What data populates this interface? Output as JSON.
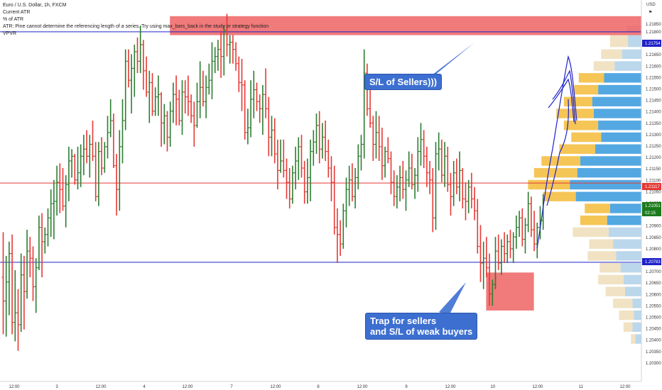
{
  "header": {
    "symbol_title": "Euro / U.S. Dollar, 1h, FXCM",
    "indicators": [
      "Current ATR",
      "% of ATR",
      "ATR: Pine cannot determine the referencing length of a series. Try using max_bars_back in the study or strategy function",
      "VPVR"
    ]
  },
  "price_axis": {
    "currency": "USD",
    "ticks": [
      "1.21850",
      "1.21800",
      "1.21700",
      "1.21650",
      "1.21600",
      "1.21550",
      "1.21500",
      "1.21450",
      "1.21400",
      "1.21350",
      "1.21300",
      "1.21250",
      "1.21200",
      "1.21150",
      "1.21100",
      "1.21050",
      "1.21000",
      "1.20950",
      "1.20900",
      "1.20850",
      "1.20800",
      "1.20750",
      "1.20700",
      "1.20650",
      "1.20600",
      "1.20550",
      "1.20500",
      "1.20450",
      "1.20400",
      "1.20350",
      "1.20300"
    ],
    "price_tags": [
      {
        "label": "1.21754",
        "color": "#1e22c8"
      },
      {
        "label": "1.21117",
        "color": "#e53935"
      },
      {
        "label": "1.21051",
        "color": "#1b7a1b"
      },
      {
        "label": "02:15",
        "color": "#1b7a1b"
      },
      {
        "label": "1.20783",
        "color": "#1e22c8"
      }
    ],
    "bell_icon": "bell-icon"
  },
  "time_axis": {
    "ticks": [
      "12:00",
      "3",
      "12:00",
      "4",
      "12:00",
      "7",
      "12:00",
      "8",
      "12:00",
      "9",
      "12:00",
      "10",
      "12:00",
      "11",
      "12:00"
    ]
  },
  "annotations": {
    "sellers_sl": "S/L of Sellers)))",
    "trap_line1": "Trap for sellers",
    "trap_line2": "and S/L of weak buyers"
  },
  "colors": {
    "bull": "#2e7d32",
    "bear": "#e53935",
    "blue_line": "#1e22c8",
    "red_line": "#e53935",
    "zone": "#ef6b6b",
    "callout": "#3d6fd1",
    "vp_blue": "#4aa3e0",
    "vp_yellow": "#f4c24d",
    "vp_blue_light": "#b7d5ea",
    "vp_yellow_light": "#efe0c0"
  },
  "chart_data": {
    "type": "candlestick",
    "symbol": "EURUSD",
    "timeframe": "1h",
    "y_range": [
      1.2026,
      1.219
    ],
    "horizontal_lines": [
      {
        "price": 1.21754,
        "color": "#1e22c8"
      },
      {
        "price": 1.21117,
        "color": "#e53935"
      },
      {
        "price": 1.20783,
        "color": "#1e22c8"
      }
    ],
    "zones": [
      {
        "price_top": 1.2182,
        "price_bottom": 1.2174,
        "bar_start": 56,
        "bar_end": 219
      },
      {
        "price_top": 1.2074,
        "price_bottom": 1.2058,
        "bar_start": 162,
        "bar_end": 178
      }
    ],
    "close_price": 1.21051,
    "ohlc": [
      [
        1.2072,
        1.2091,
        1.2048,
        1.2062
      ],
      [
        1.2062,
        1.2081,
        1.2047,
        1.207
      ],
      [
        1.207,
        1.2087,
        1.2056,
        1.2082
      ],
      [
        1.2082,
        1.209,
        1.2048,
        1.2053
      ],
      [
        1.2053,
        1.2075,
        1.2045,
        1.2057
      ],
      [
        1.2057,
        1.2067,
        1.2041,
        1.2052
      ],
      [
        1.2052,
        1.2082,
        1.2049,
        1.2073
      ],
      [
        1.2073,
        1.2081,
        1.205,
        1.2066
      ],
      [
        1.2066,
        1.2092,
        1.2063,
        1.2083
      ],
      [
        1.2083,
        1.2089,
        1.2072,
        1.208
      ],
      [
        1.208,
        1.2085,
        1.2062,
        1.2068
      ],
      [
        1.2068,
        1.208,
        1.2057,
        1.2076
      ],
      [
        1.2076,
        1.2098,
        1.2075,
        1.2093
      ],
      [
        1.2093,
        1.2099,
        1.2072,
        1.2087
      ],
      [
        1.2087,
        1.2093,
        1.2082,
        1.209
      ],
      [
        1.209,
        1.2101,
        1.2085,
        1.2097
      ],
      [
        1.2097,
        1.2109,
        1.2089,
        1.2103
      ],
      [
        1.2103,
        1.2113,
        1.2088,
        1.2104
      ],
      [
        1.2104,
        1.2119,
        1.2098,
        1.2112
      ],
      [
        1.2112,
        1.212,
        1.2099,
        1.2109
      ],
      [
        1.2109,
        1.2118,
        1.21,
        1.2102
      ],
      [
        1.2102,
        1.2115,
        1.2093,
        1.2111
      ],
      [
        1.2111,
        1.2127,
        1.2104,
        1.2121
      ],
      [
        1.2121,
        1.2126,
        1.2114,
        1.2123
      ],
      [
        1.2123,
        1.2124,
        1.2111,
        1.2113
      ],
      [
        1.2113,
        1.2127,
        1.2109,
        1.2116
      ],
      [
        1.2116,
        1.2128,
        1.211,
        1.2123
      ],
      [
        1.2123,
        1.2132,
        1.2115,
        1.2126
      ],
      [
        1.2126,
        1.2134,
        1.212,
        1.2123
      ],
      [
        1.2123,
        1.2132,
        1.2114,
        1.2128
      ],
      [
        1.2128,
        1.2138,
        1.2121,
        1.2123
      ],
      [
        1.2123,
        1.2129,
        1.2104,
        1.2106
      ],
      [
        1.2106,
        1.2129,
        1.2102,
        1.2125
      ],
      [
        1.2125,
        1.2131,
        1.2115,
        1.2118
      ],
      [
        1.2118,
        1.2129,
        1.2116,
        1.2127
      ],
      [
        1.2127,
        1.214,
        1.2122,
        1.2133
      ],
      [
        1.2133,
        1.2147,
        1.2131,
        1.2138
      ],
      [
        1.2138,
        1.2141,
        1.2118,
        1.2119
      ],
      [
        1.2119,
        1.2124,
        1.2098,
        1.2109
      ],
      [
        1.2109,
        1.2134,
        1.21,
        1.2127
      ],
      [
        1.2127,
        1.2147,
        1.212,
        1.2138
      ],
      [
        1.2138,
        1.2168,
        1.2134,
        1.2163
      ],
      [
        1.2163,
        1.2168,
        1.2152,
        1.2155
      ],
      [
        1.2155,
        1.2166,
        1.2141,
        1.216
      ],
      [
        1.216,
        1.217,
        1.2148,
        1.2167
      ],
      [
        1.2167,
        1.2173,
        1.2158,
        1.2163
      ],
      [
        1.2163,
        1.2178,
        1.2158,
        1.217
      ],
      [
        1.217,
        1.2172,
        1.2151,
        1.2159
      ],
      [
        1.2159,
        1.2165,
        1.2148,
        1.215
      ],
      [
        1.215,
        1.2159,
        1.2137,
        1.2154
      ],
      [
        1.2154,
        1.2158,
        1.214,
        1.2142
      ],
      [
        1.2142,
        1.2152,
        1.214,
        1.2148
      ],
      [
        1.2148,
        1.2157,
        1.214,
        1.2149
      ],
      [
        1.2149,
        1.215,
        1.2127,
        1.2137
      ],
      [
        1.2137,
        1.2145,
        1.2128,
        1.214
      ],
      [
        1.214,
        1.2142,
        1.2125,
        1.2131
      ],
      [
        1.2131,
        1.2146,
        1.2127,
        1.2142
      ],
      [
        1.2142,
        1.2154,
        1.2137,
        1.2149
      ],
      [
        1.2149,
        1.2157,
        1.2136,
        1.2147
      ],
      [
        1.2147,
        1.2151,
        1.2136,
        1.2138
      ],
      [
        1.2138,
        1.2155,
        1.2132,
        1.215
      ],
      [
        1.215,
        1.2155,
        1.2141,
        1.2148
      ],
      [
        1.2148,
        1.2157,
        1.214,
        1.2146
      ],
      [
        1.2146,
        1.2149,
        1.2137,
        1.214
      ],
      [
        1.214,
        1.2146,
        1.2127,
        1.2136
      ],
      [
        1.2136,
        1.2154,
        1.2135,
        1.2146
      ],
      [
        1.2146,
        1.2163,
        1.2139,
        1.2152
      ],
      [
        1.2152,
        1.2159,
        1.2144,
        1.2146
      ],
      [
        1.2146,
        1.2157,
        1.2139,
        1.2152
      ],
      [
        1.2152,
        1.2162,
        1.2149,
        1.2155
      ],
      [
        1.2155,
        1.2171,
        1.2147,
        1.2163
      ],
      [
        1.2163,
        1.2169,
        1.2158,
        1.2165
      ],
      [
        1.2165,
        1.2172,
        1.2159,
        1.2168
      ],
      [
        1.2168,
        1.2176,
        1.2156,
        1.2165
      ],
      [
        1.2165,
        1.2178,
        1.2157,
        1.2176
      ],
      [
        1.2176,
        1.2183,
        1.2165,
        1.217
      ],
      [
        1.217,
        1.2174,
        1.2162,
        1.2171
      ],
      [
        1.2171,
        1.2174,
        1.2162,
        1.2168
      ],
      [
        1.2168,
        1.2171,
        1.2159,
        1.2162
      ],
      [
        1.2162,
        1.2165,
        1.215,
        1.2154
      ],
      [
        1.2154,
        1.2164,
        1.2142,
        1.2153
      ],
      [
        1.2153,
        1.2155,
        1.213,
        1.2133
      ],
      [
        1.2133,
        1.2143,
        1.2128,
        1.2135
      ],
      [
        1.2135,
        1.2155,
        1.2131,
        1.2147
      ],
      [
        1.2147,
        1.2159,
        1.2139,
        1.2151
      ],
      [
        1.2151,
        1.2154,
        1.2142,
        1.2146
      ],
      [
        1.2146,
        1.2149,
        1.2137,
        1.2143
      ],
      [
        1.2143,
        1.2153,
        1.2132,
        1.2149
      ],
      [
        1.2149,
        1.216,
        1.2139,
        1.2143
      ],
      [
        1.2143,
        1.2148,
        1.2123,
        1.2131
      ],
      [
        1.2131,
        1.214,
        1.2123,
        1.2134
      ],
      [
        1.2134,
        1.2139,
        1.212,
        1.2124
      ],
      [
        1.2124,
        1.213,
        1.2109,
        1.2117
      ],
      [
        1.2117,
        1.213,
        1.2116,
        1.2121
      ],
      [
        1.2121,
        1.213,
        1.2114,
        1.2117
      ],
      [
        1.2117,
        1.2122,
        1.2105,
        1.2112
      ],
      [
        1.2112,
        1.2118,
        1.2101,
        1.2105
      ],
      [
        1.2105,
        1.2119,
        1.2103,
        1.2116
      ],
      [
        1.2116,
        1.2127,
        1.2109,
        1.2121
      ],
      [
        1.2121,
        1.2131,
        1.2113,
        1.2127
      ],
      [
        1.2127,
        1.2132,
        1.2114,
        1.2118
      ],
      [
        1.2118,
        1.2121,
        1.2103,
        1.2108
      ],
      [
        1.2108,
        1.2122,
        1.2103,
        1.2114
      ],
      [
        1.2114,
        1.213,
        1.2104,
        1.2125
      ],
      [
        1.2125,
        1.2134,
        1.2119,
        1.2129
      ],
      [
        1.2129,
        1.2141,
        1.2124,
        1.2136
      ],
      [
        1.2136,
        1.2142,
        1.212,
        1.2126
      ],
      [
        1.2126,
        1.2137,
        1.2122,
        1.2131
      ],
      [
        1.2131,
        1.2138,
        1.2121,
        1.2125
      ],
      [
        1.2125,
        1.213,
        1.2114,
        1.2118
      ],
      [
        1.2118,
        1.2123,
        1.2104,
        1.2112
      ],
      [
        1.2112,
        1.2119,
        1.209,
        1.2093
      ],
      [
        1.2093,
        1.2101,
        1.2078,
        1.209
      ],
      [
        1.209,
        1.2096,
        1.2081,
        1.2086
      ],
      [
        1.2086,
        1.2103,
        1.2084,
        1.21
      ],
      [
        1.21,
        1.2114,
        1.2093,
        1.2109
      ],
      [
        1.2109,
        1.2119,
        1.2102,
        1.2113
      ],
      [
        1.2113,
        1.212,
        1.2104,
        1.2106
      ],
      [
        1.2106,
        1.2118,
        1.2101,
        1.2114
      ],
      [
        1.2114,
        1.2128,
        1.2109,
        1.2123
      ],
      [
        1.2123,
        1.2132,
        1.2117,
        1.2128
      ],
      [
        1.2128,
        1.2168,
        1.2122,
        1.2158
      ],
      [
        1.2158,
        1.2162,
        1.214,
        1.2143
      ],
      [
        1.2143,
        1.2156,
        1.2135,
        1.2137
      ],
      [
        1.2137,
        1.214,
        1.2121,
        1.2128
      ],
      [
        1.2128,
        1.2142,
        1.2122,
        1.2133
      ],
      [
        1.2133,
        1.214,
        1.2121,
        1.2127
      ],
      [
        1.2127,
        1.2135,
        1.2113,
        1.2119
      ],
      [
        1.2119,
        1.2127,
        1.2114,
        1.2125
      ],
      [
        1.2125,
        1.2131,
        1.212,
        1.2122
      ],
      [
        1.2122,
        1.2125,
        1.2107,
        1.2112
      ],
      [
        1.2112,
        1.2117,
        1.2102,
        1.2106
      ],
      [
        1.2106,
        1.2115,
        1.2101,
        1.211
      ],
      [
        1.211,
        1.2119,
        1.2104,
        1.2114
      ],
      [
        1.2114,
        1.2121,
        1.2105,
        1.2109
      ],
      [
        1.2109,
        1.2117,
        1.21,
        1.2113
      ],
      [
        1.2113,
        1.2125,
        1.211,
        1.2118
      ],
      [
        1.2118,
        1.2124,
        1.2109,
        1.2111
      ],
      [
        1.2111,
        1.2118,
        1.2105,
        1.2115
      ],
      [
        1.2115,
        1.2131,
        1.2108,
        1.2125
      ],
      [
        1.2125,
        1.2137,
        1.2119,
        1.213
      ],
      [
        1.213,
        1.2134,
        1.2118,
        1.2123
      ],
      [
        1.2123,
        1.2127,
        1.211,
        1.2116
      ],
      [
        1.2116,
        1.2121,
        1.2107,
        1.2113
      ],
      [
        1.2113,
        1.2118,
        1.2091,
        1.2097
      ],
      [
        1.2097,
        1.2129,
        1.2092,
        1.2124
      ],
      [
        1.2124,
        1.2133,
        1.2117,
        1.2126
      ],
      [
        1.2126,
        1.213,
        1.2112,
        1.2115
      ],
      [
        1.2115,
        1.2129,
        1.211,
        1.2123
      ],
      [
        1.2123,
        1.2127,
        1.2108,
        1.2111
      ],
      [
        1.2111,
        1.2116,
        1.2098,
        1.2106
      ],
      [
        1.2106,
        1.2121,
        1.2102,
        1.2116
      ],
      [
        1.2116,
        1.2122,
        1.2107,
        1.211
      ],
      [
        1.211,
        1.2125,
        1.2104,
        1.2117
      ],
      [
        1.2117,
        1.2118,
        1.2101,
        1.2105
      ],
      [
        1.2105,
        1.2112,
        1.2096,
        1.2104
      ],
      [
        1.2104,
        1.2113,
        1.2099,
        1.211
      ],
      [
        1.211,
        1.2116,
        1.2101,
        1.2105
      ],
      [
        1.2105,
        1.211,
        1.2096,
        1.21
      ],
      [
        1.21,
        1.2105,
        1.2082,
        1.2085
      ],
      [
        1.2085,
        1.2094,
        1.207,
        1.2078
      ],
      [
        1.2078,
        1.2087,
        1.2067,
        1.208
      ],
      [
        1.208,
        1.2089,
        1.2072,
        1.2076
      ],
      [
        1.2076,
        1.2082,
        1.206,
        1.2065
      ],
      [
        1.2065,
        1.2071,
        1.206,
        1.2069
      ],
      [
        1.2069,
        1.2089,
        1.2067,
        1.2083
      ],
      [
        1.2083,
        1.209,
        1.2075,
        1.2078
      ],
      [
        1.2078,
        1.2088,
        1.2073,
        1.2085
      ],
      [
        1.2085,
        1.2091,
        1.2078,
        1.2082
      ],
      [
        1.2082,
        1.209,
        1.2078,
        1.2087
      ],
      [
        1.2087,
        1.2092,
        1.208,
        1.2084
      ],
      [
        1.2084,
        1.2091,
        1.2078,
        1.2089
      ],
      [
        1.2089,
        1.2098,
        1.2084,
        1.2093
      ],
      [
        1.2093,
        1.21,
        1.2089,
        1.2097
      ],
      [
        1.2097,
        1.2101,
        1.2085,
        1.2088
      ],
      [
        1.2088,
        1.2097,
        1.2082,
        1.2094
      ],
      [
        1.2094,
        1.2108,
        1.2091,
        1.2103
      ],
      [
        1.2103,
        1.2106,
        1.2089,
        1.2092
      ],
      [
        1.2092,
        1.21,
        1.2083,
        1.2086
      ],
      [
        1.2086,
        1.2095,
        1.208,
        1.2093
      ],
      [
        1.2093,
        1.2102,
        1.2088,
        1.2096
      ],
      [
        1.2096,
        1.2107,
        1.2092,
        1.2105
      ]
    ],
    "volume_profile": {
      "note": "each row: price_top, price_bottom, up_volume, down_volume (relative, 0-100)",
      "rows": [
        [
          1.2178,
          1.2175,
          10,
          0
        ],
        [
          1.2174,
          1.2169,
          9,
          12
        ],
        [
          1.2168,
          1.2164,
          13,
          14
        ],
        [
          1.2163,
          1.2159,
          18,
          14
        ],
        [
          1.2158,
          1.2154,
          25,
          17
        ],
        [
          1.2153,
          1.2149,
          29,
          16
        ],
        [
          1.2148,
          1.2144,
          33,
          19
        ],
        [
          1.2143,
          1.2139,
          32,
          25
        ],
        [
          1.2138,
          1.2134,
          29,
          23
        ],
        [
          1.2133,
          1.2129,
          27,
          20
        ],
        [
          1.2128,
          1.2124,
          31,
          24
        ],
        [
          1.2123,
          1.2119,
          41,
          26
        ],
        [
          1.2118,
          1.2114,
          43,
          29
        ],
        [
          1.2113,
          1.2109,
          48,
          28
        ],
        [
          1.2108,
          1.2104,
          44,
          22
        ],
        [
          1.2103,
          1.2099,
          21,
          17
        ],
        [
          1.2098,
          1.2094,
          23,
          18
        ],
        [
          1.2093,
          1.2089,
          22,
          24
        ],
        [
          1.2088,
          1.2084,
          19,
          16
        ],
        [
          1.2083,
          1.2079,
          17,
          19
        ],
        [
          1.2078,
          1.2074,
          14,
          14
        ],
        [
          1.2073,
          1.2069,
          12,
          17
        ],
        [
          1.2068,
          1.2064,
          11,
          13
        ],
        [
          1.2063,
          1.2059,
          6,
          13
        ],
        [
          1.2058,
          1.2054,
          5,
          10
        ],
        [
          1.2053,
          1.2049,
          6,
          6
        ],
        [
          1.2048,
          1.2044,
          4,
          3
        ]
      ]
    }
  }
}
